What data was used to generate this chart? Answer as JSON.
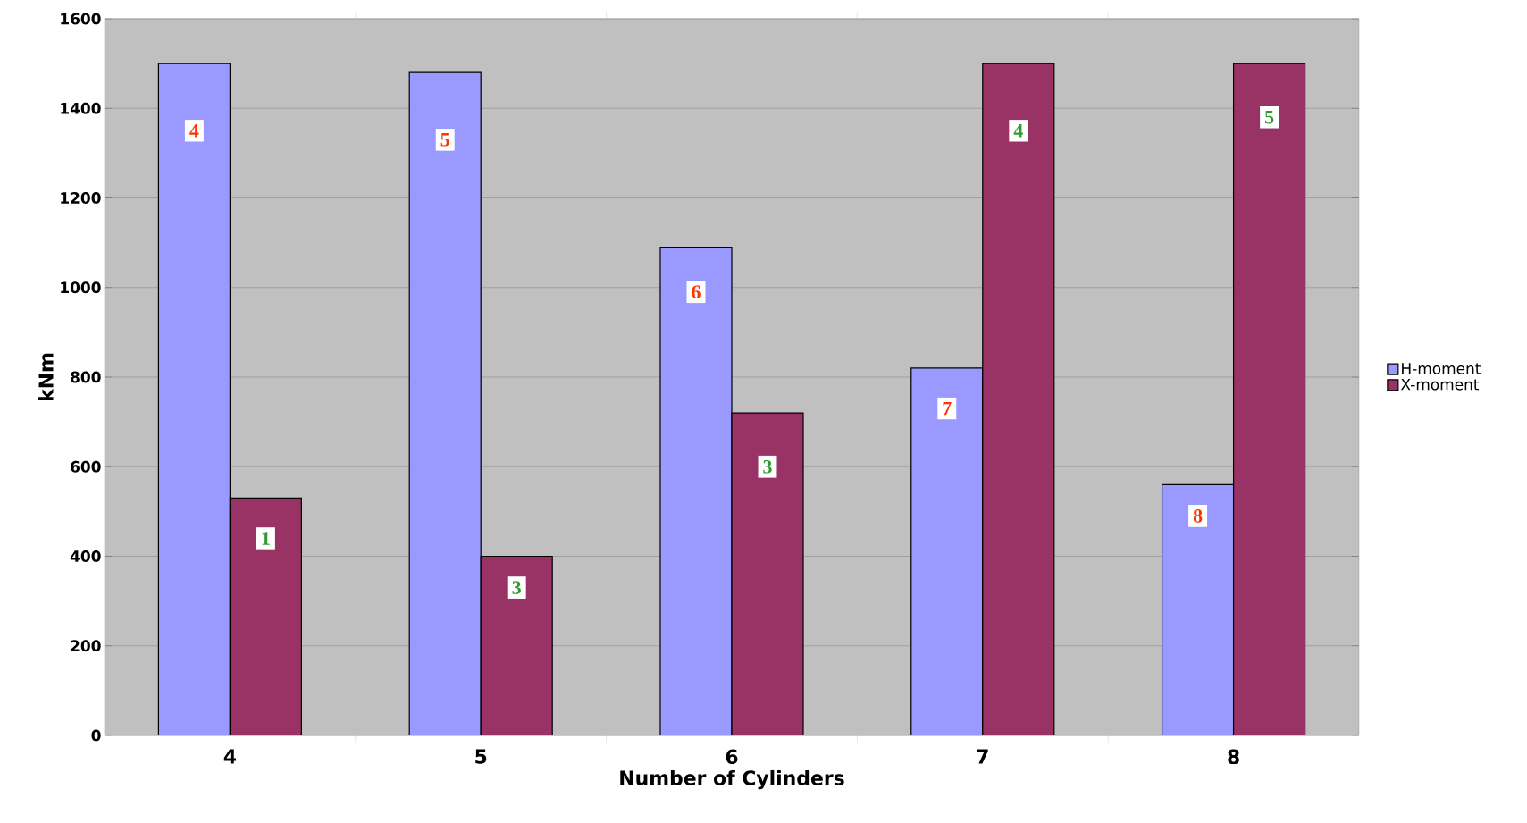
{
  "chart_data": {
    "type": "bar",
    "xlabel": "Number of Cylinders",
    "ylabel": "kNm",
    "categories": [
      "4",
      "5",
      "6",
      "7",
      "8"
    ],
    "series": [
      {
        "name": "H-moment",
        "color": "#9999ff",
        "values": [
          1500,
          1480,
          1090,
          820,
          560
        ]
      },
      {
        "name": "X-moment",
        "color": "#993366",
        "values": [
          530,
          400,
          720,
          1500,
          1500
        ]
      }
    ],
    "annotations": [
      {
        "text": "4",
        "x": "4",
        "y": 1350
      },
      {
        "text": "5",
        "x": "5",
        "y": 1330
      },
      {
        "text": "6",
        "x": "6",
        "y": 990
      },
      {
        "text": "7",
        "x": "7",
        "y": 730
      },
      {
        "text": "8",
        "x": "8",
        "y": 490
      },
      {
        "text": "1",
        "x": "4",
        "y": 440
      },
      {
        "text": "3",
        "x": "5",
        "y": 330
      },
      {
        "text": "3",
        "x": "6",
        "y": 600
      },
      {
        "text": "4",
        "x": "7",
        "y": 1350
      },
      {
        "text": "5",
        "x": "8",
        "y": 1380
      }
    ],
    "ylim": [
      0,
      1600
    ],
    "yticks": [
      0,
      200,
      400,
      600,
      800,
      1000,
      1200,
      1400,
      1600
    ],
    "grid": "y",
    "legend": "right"
  }
}
